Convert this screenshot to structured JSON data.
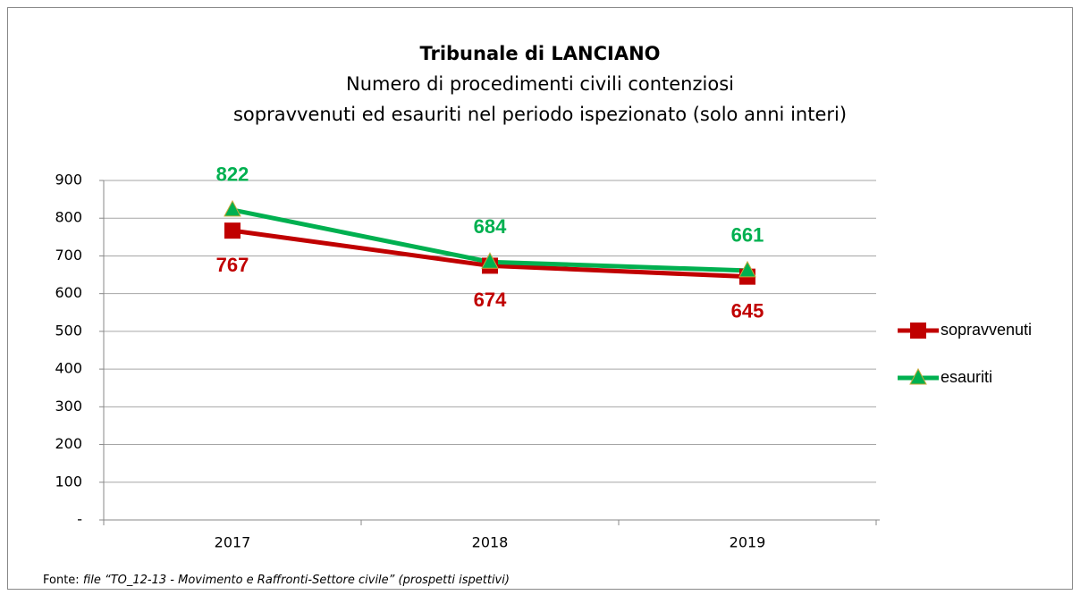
{
  "chart_data": {
    "type": "line",
    "title": "Tribunale di LANCIANO",
    "subtitle": [
      "Numero di procedimenti civili contenziosi",
      "sopravvenuti ed esauriti nel periodo ispezionato (solo anni interi)"
    ],
    "categories": [
      "2017",
      "2018",
      "2019"
    ],
    "series": [
      {
        "name": "sopravvenuti",
        "color": "#c00000",
        "marker": "square",
        "values": [
          767,
          674,
          645
        ]
      },
      {
        "name": "esauriti",
        "color": "#00b050",
        "marker": "triangle",
        "values": [
          822,
          684,
          661
        ]
      }
    ],
    "ylim": [
      0,
      900
    ],
    "yticks": [
      {
        "value": 0,
        "label": "-"
      },
      100,
      200,
      300,
      400,
      500,
      600,
      700,
      800,
      900
    ],
    "grid": true,
    "legend": "right",
    "source_label": "Fonte:",
    "source": "file “TO_12-13 - Movimento e Raffronti-Settore civile” (prospetti ispettivi)"
  }
}
